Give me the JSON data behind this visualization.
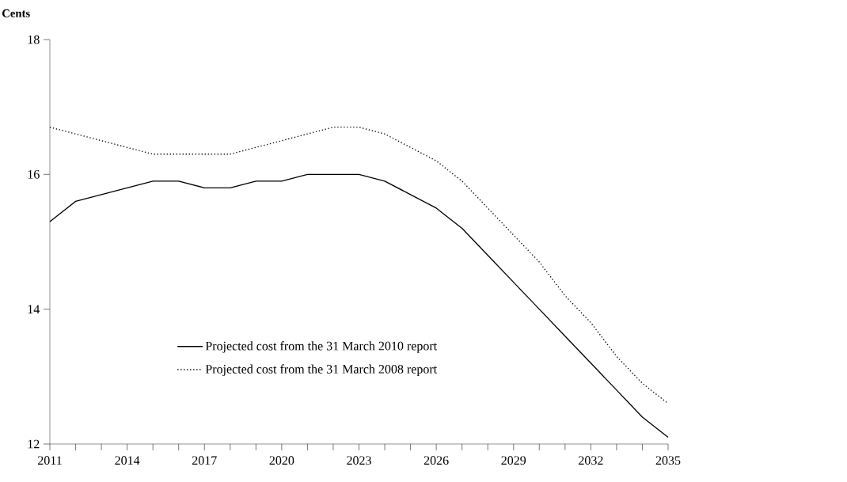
{
  "chart_data": {
    "type": "line",
    "ylabel": "Cents",
    "x": [
      2011,
      2012,
      2013,
      2014,
      2015,
      2016,
      2017,
      2018,
      2019,
      2020,
      2021,
      2022,
      2023,
      2024,
      2025,
      2026,
      2027,
      2028,
      2029,
      2030,
      2031,
      2032,
      2033,
      2034,
      2035
    ],
    "series": [
      {
        "name": "Projected cost from the 31 March 2010 report",
        "color": "#000000",
        "line_style": "solid",
        "values": [
          15.3,
          15.6,
          15.7,
          15.8,
          15.9,
          15.9,
          15.8,
          15.8,
          15.9,
          15.9,
          16.0,
          16.0,
          16.0,
          15.9,
          15.7,
          15.5,
          15.2,
          14.8,
          14.4,
          14.0,
          13.6,
          13.2,
          12.8,
          12.4,
          12.1
        ]
      },
      {
        "name": "Projected cost from the 31 March 2008 report",
        "color": "#000000",
        "line_style": "dotted",
        "values": [
          16.7,
          16.6,
          16.5,
          16.4,
          16.3,
          16.3,
          16.3,
          16.3,
          16.4,
          16.5,
          16.6,
          16.7,
          16.7,
          16.6,
          16.4,
          16.2,
          15.9,
          15.5,
          15.1,
          14.7,
          14.2,
          13.8,
          13.3,
          12.9,
          12.6
        ]
      }
    ],
    "xlim": [
      2011,
      2035
    ],
    "xticks": [
      2011,
      2014,
      2017,
      2020,
      2023,
      2026,
      2029,
      2032,
      2035
    ],
    "ylim": [
      12,
      18
    ],
    "yticks": [
      12,
      14,
      16,
      18
    ],
    "legend": "bottom left",
    "grid": false,
    "marker": "none"
  }
}
